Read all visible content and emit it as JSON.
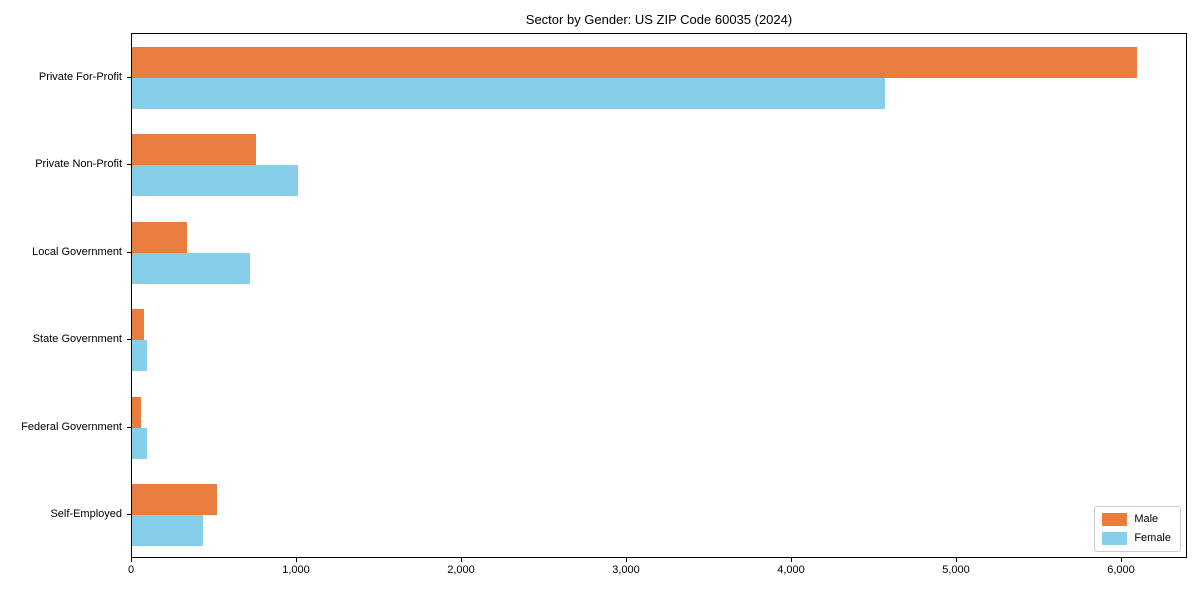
{
  "chart_data": {
    "type": "bar",
    "orientation": "horizontal",
    "title": "Sector by Gender: US ZIP Code 60035 (2024)",
    "categories": [
      "Private For-Profit",
      "Private Non-Profit",
      "Local Government",
      "State Government",
      "Federal Government",
      "Self-Employed"
    ],
    "series": [
      {
        "name": "Male",
        "color": "#e87d3e",
        "values": [
          6100,
          750,
          335,
          70,
          55,
          515
        ]
      },
      {
        "name": "Female",
        "color": "#87ceeb",
        "values": [
          4570,
          1010,
          715,
          90,
          90,
          430
        ]
      }
    ],
    "xlabel": "",
    "ylabel": "",
    "xlim": [
      0,
      6400
    ],
    "x_ticks": [
      0,
      1000,
      2000,
      3000,
      4000,
      5000,
      6000
    ],
    "x_tick_labels": [
      "0",
      "1,000",
      "2,000",
      "3,000",
      "4,000",
      "5,000",
      "6,000"
    ],
    "grid": false,
    "legend_position": "lower right",
    "colors": {
      "spine": "#000000",
      "background": "#ffffff",
      "text": "#000000"
    }
  }
}
